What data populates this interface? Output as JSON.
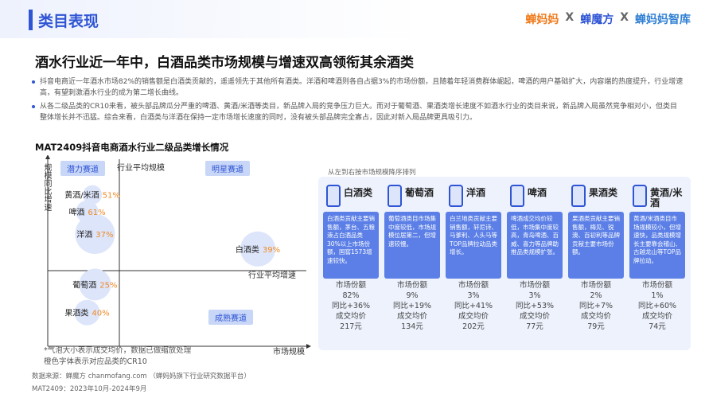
{
  "header": {
    "title": "类目表现",
    "logos": [
      "蝉妈妈",
      "X",
      "蝉魔方",
      "X",
      "蝉妈妈智库"
    ]
  },
  "headline": "酒水行业近一年中，白酒品类市场规模与增速双高领衔其余酒类",
  "bullets": [
    "抖音电商近一年酒水市场82%的销售额是白酒类贡献的，遥遥领先于其他所有酒类。洋酒和啤酒则各自占据3%的市场份额，且随着年轻消费群体崛起，啤酒的用户基础扩大，内容端的热度提升，行业增速高，有望刺激酒水行业的成为第二增长曲线。",
    "从各二级品类的CR10来看，被头部品牌瓜分严重的啤酒、黄酒/米酒等类目，新品牌入局的竞争压力巨大。而对于葡萄酒、果酒类增长速度不如酒水行业的类目来说，新品牌入局虽然竞争相对小，但类目整体增长并不迅猛。综合来看，白酒类与洋酒在保持一定市场增长速度的同时，没有被头部品牌完全寡占，因此对新入局品牌更具吸引力。"
  ],
  "chart_data": {
    "type": "bubble",
    "title": "MAT2409抖音电商酒水行业二级品类增长情况",
    "y_label": "规模同比增速",
    "x_label": "市场规模",
    "quadrants": [
      "潜力赛道",
      "明星赛道",
      "成熟赛道"
    ],
    "x_ref_label": "行业平均规模",
    "y_ref_label": "行业平均增速",
    "categories": [
      "黄酒/米酒",
      "啤酒",
      "洋酒",
      "白酒类",
      "葡萄酒",
      "果酒类"
    ],
    "x": [
      17,
      15,
      18,
      80,
      18,
      15
    ],
    "values": [
      81,
      72,
      60,
      52,
      33,
      18
    ],
    "sizes": [
      12,
      14,
      25,
      22,
      20,
      16
    ],
    "cr10_labels": [
      "51%",
      "61%",
      "37%",
      "39%",
      "25%",
      "40%"
    ],
    "color": "#dde5fb",
    "label_color": "#f08a24",
    "xlim": [
      0,
      100
    ],
    "ylim": [
      0,
      100
    ],
    "notes": [
      "*气泡大小表示成交均价，数据已做缩放处理",
      "橙色字体表示对应品类的CR10"
    ]
  },
  "panel": {
    "caption": "从左到右按市场规模降序排列",
    "cards": [
      {
        "name": "白酒类",
        "desc": "白酒类贡献主要销售额，茅台、五粮液占白酒品类30%以上市场份额，国窖1573增速较快。",
        "share_label": "市场份额",
        "share": "82%",
        "yoy_label": "同比",
        "yoy": "+36%",
        "price_label": "成交均价",
        "price": "217元"
      },
      {
        "name": "葡萄酒",
        "desc": "葡萄酒类目市场集中度较低，市场规模位居第二，但增速较慢。",
        "share_label": "市场份额",
        "share": "9%",
        "yoy_label": "同比",
        "yoy": "+19%",
        "price_label": "成交均价",
        "price": "134元"
      },
      {
        "name": "洋酒",
        "desc": "白兰地类贡献主要销售额，轩尼诗、马爹利、人头马等TOP品牌拉动品类增长。",
        "share_label": "市场份额",
        "share": "3%",
        "yoy_label": "同比",
        "yoy": "+41%",
        "price_label": "成交均价",
        "price": "202元"
      },
      {
        "name": "啤酒",
        "desc": "啤酒成交均价较低，市场集中度较高，青岛啤酒、百威、喜力等品牌助推品类规模扩张。",
        "share_label": "市场份额",
        "share": "3%",
        "yoy_label": "同比",
        "yoy": "+53%",
        "price_label": "成交均价",
        "price": "77元"
      },
      {
        "name": "果酒类",
        "desc": "果酒类贡献主要销售额，梅见、锐澳、百初利等品牌贡献主要市场份额。",
        "share_label": "市场份额",
        "share": "2%",
        "yoy_label": "同比",
        "yoy": "+7%",
        "price_label": "成交均价",
        "price": "79元"
      },
      {
        "name": "黄酒/米酒",
        "desc": "黄酒/米酒类目市场规模较小，但增速快，品类规模增长主要靠会稽山、古越龙山等TOP品牌拉动。",
        "share_label": "市场份额",
        "share": "1%",
        "yoy_label": "同比",
        "yoy": "+60%",
        "price_label": "成交均价",
        "price": "74元"
      }
    ]
  },
  "footer": [
    "数据来源：蝉魔方 chanmofang.com （蝉妈妈旗下行业研究数据平台）",
    "MAT2409：2023年10月-2024年9月"
  ]
}
